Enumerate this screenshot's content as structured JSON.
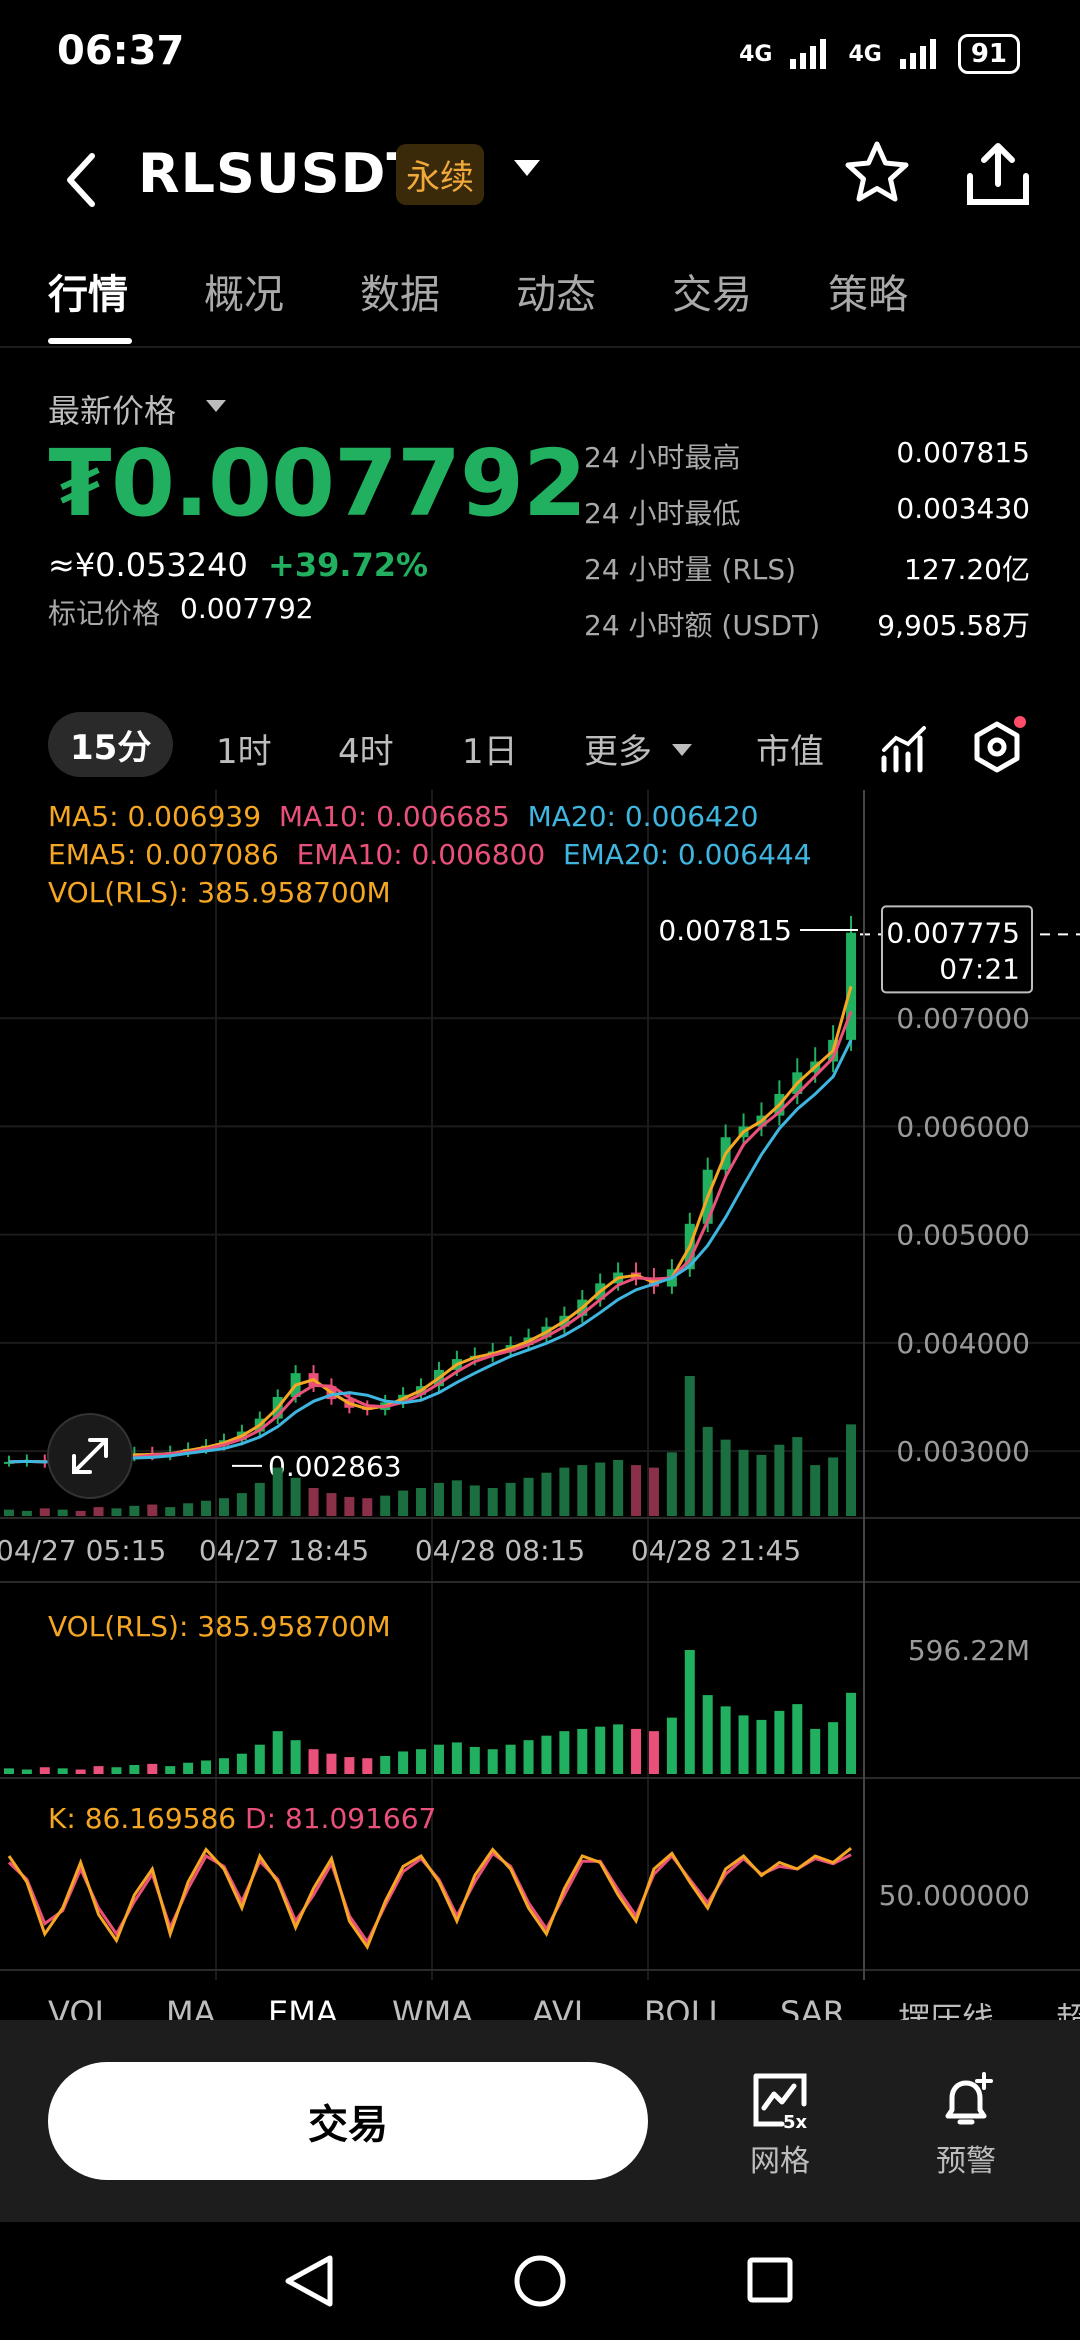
{
  "status_bar": {
    "time": "06:37",
    "network_1": "4G",
    "network_2": "4G",
    "battery": "91"
  },
  "header": {
    "symbol": "RLSUSDT",
    "contract_tag": "永续"
  },
  "tabs": [
    {
      "label": "行情",
      "active": true
    },
    {
      "label": "概况",
      "active": false
    },
    {
      "label": "数据",
      "active": false
    },
    {
      "label": "动态",
      "active": false
    },
    {
      "label": "交易",
      "active": false
    },
    {
      "label": "策略",
      "active": false
    }
  ],
  "price": {
    "label": "最新价格",
    "last": "₮0.007792",
    "cny": "≈¥0.053240",
    "change": "+39.72%",
    "mark_label": "标记价格",
    "mark_value": "0.007792",
    "up_color": "#21b05f"
  },
  "stats": [
    {
      "label": "24 小时最高",
      "value": "0.007815"
    },
    {
      "label": "24 小时最低",
      "value": "0.003430"
    },
    {
      "label": "24 小时量 (RLS)",
      "value": "127.20亿"
    },
    {
      "label": "24 小时额 (USDT)",
      "value": "9,905.58万"
    }
  ],
  "intervals": {
    "items": [
      "15分",
      "1时",
      "4时",
      "1日"
    ],
    "more": "更多",
    "market_cap": "市值"
  },
  "legend": {
    "ma5": "MA5: 0.006939",
    "ma10": "MA10: 0.006685",
    "ma20": "MA20: 0.006420",
    "ema5": "EMA5: 0.007086",
    "ema10": "EMA10: 0.006800",
    "ema20": "EMA20: 0.006444",
    "vol": "VOL(RLS): 385.958700M",
    "colors": {
      "ma5": "#f5a623",
      "ma10": "#e9507a",
      "ma20": "#3fb6e0"
    }
  },
  "chart_data": [
    {
      "type": "candlestick",
      "y_ticks": [
        "0.007000",
        "0.006000",
        "0.005000",
        "0.004000",
        "0.003000"
      ],
      "ylim": [
        0.0024,
        0.008
      ],
      "x_ticks": [
        "04/27 05:15",
        "04/27 18:45",
        "04/28 08:15",
        "04/28 21:45"
      ],
      "high_marker": "0.007815",
      "low_marker": "0.002863",
      "crosshair_price": "0.007775",
      "crosshair_time": "07:21",
      "close_series": [
        0.0029,
        0.00291,
        0.00289,
        0.00293,
        0.00292,
        0.0029,
        0.00295,
        0.00298,
        0.00296,
        0.00299,
        0.00302,
        0.00305,
        0.0031,
        0.00318,
        0.0033,
        0.0035,
        0.00372,
        0.0036,
        0.00348,
        0.0034,
        0.00338,
        0.00345,
        0.00352,
        0.0036,
        0.00375,
        0.00385,
        0.00388,
        0.00392,
        0.00398,
        0.00405,
        0.00415,
        0.00425,
        0.0044,
        0.00455,
        0.00465,
        0.0046,
        0.00452,
        0.00468,
        0.0051,
        0.0056,
        0.0059,
        0.006,
        0.0061,
        0.0063,
        0.0065,
        0.0066,
        0.0068,
        0.00779
      ]
    },
    {
      "type": "bar",
      "title": "VOL(RLS): 385.958700M",
      "y_label": "596.22M",
      "values": [
        5,
        4,
        6,
        5,
        4,
        7,
        6,
        8,
        9,
        7,
        10,
        12,
        14,
        18,
        26,
        38,
        30,
        22,
        18,
        15,
        14,
        16,
        20,
        22,
        26,
        28,
        24,
        22,
        26,
        30,
        34,
        38,
        40,
        42,
        44,
        40,
        38,
        50,
        110,
        70,
        60,
        52,
        48,
        56,
        62,
        40,
        46,
        72
      ]
    },
    {
      "type": "line",
      "title": "K: 86.169586 D: 81.091667",
      "k_label": "K: 86.169586",
      "d_label": "D: 81.091667",
      "y_label": "50.000000",
      "ylim": [
        0,
        100
      ],
      "k_values": [
        80,
        60,
        20,
        40,
        75,
        35,
        15,
        50,
        70,
        20,
        60,
        85,
        70,
        40,
        80,
        60,
        25,
        55,
        78,
        30,
        10,
        45,
        72,
        80,
        60,
        30,
        65,
        85,
        70,
        40,
        20,
        55,
        80,
        75,
        50,
        30,
        70,
        82,
        60,
        40,
        70,
        80,
        65,
        75,
        70,
        80,
        75,
        86
      ],
      "d_values": [
        75,
        62,
        28,
        38,
        70,
        40,
        20,
        45,
        66,
        25,
        55,
        80,
        72,
        45,
        76,
        62,
        30,
        50,
        74,
        34,
        14,
        42,
        68,
        78,
        62,
        34,
        60,
        82,
        72,
        44,
        24,
        50,
        76,
        76,
        54,
        34,
        66,
        80,
        62,
        44,
        66,
        78,
        66,
        72,
        70,
        78,
        74,
        81
      ]
    }
  ],
  "indicator_tabs": [
    "VOL",
    "MA",
    "EMA",
    "WMA",
    "AVL",
    "BOLL",
    "SAR",
    "摆压线",
    "超"
  ],
  "action_bar": {
    "trade": "交易",
    "grid": "网格",
    "grid_badge": "5x",
    "alert": "预警"
  }
}
